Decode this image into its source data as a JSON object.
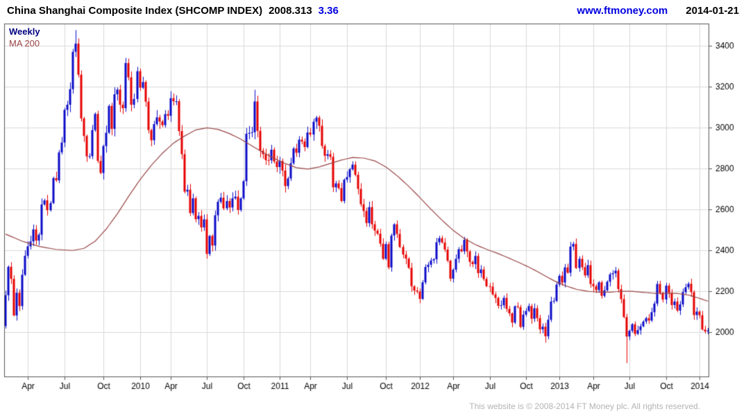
{
  "header": {
    "title": "China Shanghai Composite Index (SHCOMP INDEX)",
    "last_price": "2008.313",
    "change": "3.36",
    "site_link": "www.ftmoney.com",
    "date": "2014-01-21"
  },
  "legend": {
    "series_label": "Weekly",
    "ma_label": "MA 200"
  },
  "footer": {
    "copyright": "This website is © 2008-2014 FT Money plc. All rights reserved."
  },
  "colors": {
    "up": "#0a0ac8",
    "down": "#e60000",
    "ma": "#994444",
    "grid": "#d9d9d9",
    "border": "#555555",
    "axis_text": "#000000",
    "weekly_label": "#000080",
    "link_blue": "#0000e0",
    "change_blue": "#0000e0",
    "title_text": "#000000",
    "footer_text": "#b3b3b3"
  },
  "chart_data": {
    "type": "candlestick",
    "title": "China Shanghai Composite Index (SHCOMP INDEX)",
    "interval": "Weekly",
    "overlay": "MA 200",
    "start_date": "2009-02",
    "end_date": "2014-01-21",
    "last_close": 2008.313,
    "change": 3.36,
    "grid": true,
    "ylim": [
      1780,
      3510
    ],
    "y_ticks": [
      2000,
      2200,
      2400,
      2600,
      2800,
      3000,
      3200,
      3400
    ],
    "x_ticks": [
      {
        "week": 8,
        "label": "Apr"
      },
      {
        "week": 21,
        "label": "Jul"
      },
      {
        "week": 35,
        "label": "Oct"
      },
      {
        "week": 48,
        "label": "2010"
      },
      {
        "week": 59,
        "label": "Apr"
      },
      {
        "week": 72,
        "label": "Jul"
      },
      {
        "week": 85,
        "label": "Oct"
      },
      {
        "week": 98,
        "label": "2011"
      },
      {
        "week": 109,
        "label": "Apr"
      },
      {
        "week": 122,
        "label": "Jul"
      },
      {
        "week": 136,
        "label": "Oct"
      },
      {
        "week": 148,
        "label": "2012"
      },
      {
        "week": 160,
        "label": "Apr"
      },
      {
        "week": 173,
        "label": "Jul"
      },
      {
        "week": 186,
        "label": "Oct"
      },
      {
        "week": 198,
        "label": "2013"
      },
      {
        "week": 210,
        "label": "Apr"
      },
      {
        "week": 223,
        "label": "Jul"
      },
      {
        "week": 236,
        "label": "Oct"
      },
      {
        "week": 248,
        "label": "2014"
      }
    ],
    "first_open": 2030,
    "closes": [
      2181,
      2320,
      2261,
      2082,
      2193,
      2128,
      2281,
      2374,
      2420,
      2444,
      2503,
      2448,
      2477,
      2625,
      2645,
      2597,
      2632,
      2754,
      2743,
      2880,
      2928,
      3088,
      3113,
      3189,
      3372,
      3412,
      3260,
      3046,
      2960,
      2860,
      2861,
      2989,
      3068,
      2838,
      2779,
      2911,
      2976,
      3107,
      2995,
      3164,
      3187,
      3113,
      3096,
      3317,
      3247,
      3113,
      3141,
      3277,
      3196,
      3224,
      3128,
      2989,
      2939,
      3018,
      3051,
      3031,
      3013,
      3067,
      3059,
      3145,
      3130,
      3130,
      2984,
      2871,
      2688,
      2697,
      2583,
      2655,
      2553,
      2569,
      2513,
      2552,
      2383,
      2471,
      2424,
      2572,
      2638,
      2658,
      2606,
      2642,
      2610,
      2655,
      2663,
      2598,
      2655,
      2739,
      2971,
      2975,
      2978,
      3129,
      2985,
      2888,
      2871,
      2842,
      2841,
      2893,
      2835,
      2808,
      2838,
      2791,
      2715,
      2752,
      2827,
      2899,
      2878,
      2942,
      2933,
      2906,
      2977,
      2967,
      3030,
      3050,
      3010,
      2911,
      2863,
      2871,
      2858,
      2709,
      2728,
      2705,
      2642,
      2746,
      2759,
      2797,
      2820,
      2770,
      2701,
      2626,
      2593,
      2534,
      2612,
      2528,
      2497,
      2482,
      2433,
      2359,
      2431,
      2317,
      2473,
      2528,
      2481,
      2417,
      2380,
      2360,
      2315,
      2225,
      2204,
      2199,
      2163,
      2244,
      2319,
      2330,
      2351,
      2357,
      2440,
      2460,
      2439,
      2404,
      2350,
      2262,
      2306,
      2359,
      2406,
      2396,
      2452,
      2395,
      2344,
      2333,
      2373,
      2289,
      2307,
      2260,
      2225,
      2223,
      2185,
      2168,
      2129,
      2132,
      2168,
      2114,
      2092,
      2047,
      2127,
      2123,
      2026,
      2086,
      2104,
      2128,
      2066,
      2117,
      2069,
      2014,
      2027,
      1980,
      2061,
      2150,
      2153,
      2233,
      2276,
      2243,
      2317,
      2291,
      2419,
      2432,
      2314,
      2359,
      2318,
      2278,
      2328,
      2236,
      2225,
      2206,
      2244,
      2178,
      2205,
      2247,
      2283,
      2288,
      2301,
      2211,
      2162,
      2074,
      1979,
      2007,
      2039,
      1992,
      2010,
      2029,
      2052,
      2069,
      2057,
      2098,
      2140,
      2236,
      2192,
      2160,
      2228,
      2193,
      2133,
      2150,
      2106,
      2136,
      2196,
      2220,
      2237,
      2196,
      2084,
      2101,
      2083,
      2013,
      2004,
      2008.31
    ],
    "wick_overrides": {
      "25": {
        "high": 3478
      },
      "89": {
        "high": 3186
      },
      "137": {
        "low": 2307
      },
      "193": {
        "low": 1949
      },
      "222": {
        "low": 1849
      }
    },
    "ma200_anchors": [
      [
        0,
        2480
      ],
      [
        6,
        2445
      ],
      [
        12,
        2420
      ],
      [
        18,
        2405
      ],
      [
        24,
        2400
      ],
      [
        28,
        2410
      ],
      [
        32,
        2445
      ],
      [
        36,
        2505
      ],
      [
        40,
        2580
      ],
      [
        44,
        2665
      ],
      [
        48,
        2745
      ],
      [
        52,
        2815
      ],
      [
        56,
        2875
      ],
      [
        60,
        2925
      ],
      [
        64,
        2960
      ],
      [
        68,
        2990
      ],
      [
        72,
        3000
      ],
      [
        76,
        2992
      ],
      [
        80,
        2972
      ],
      [
        84,
        2945
      ],
      [
        88,
        2912
      ],
      [
        92,
        2880
      ],
      [
        96,
        2850
      ],
      [
        100,
        2825
      ],
      [
        104,
        2805
      ],
      [
        108,
        2798
      ],
      [
        112,
        2808
      ],
      [
        116,
        2825
      ],
      [
        120,
        2842
      ],
      [
        124,
        2855
      ],
      [
        128,
        2852
      ],
      [
        132,
        2838
      ],
      [
        136,
        2808
      ],
      [
        140,
        2765
      ],
      [
        144,
        2715
      ],
      [
        148,
        2660
      ],
      [
        152,
        2602
      ],
      [
        156,
        2548
      ],
      [
        160,
        2498
      ],
      [
        164,
        2458
      ],
      [
        168,
        2428
      ],
      [
        172,
        2405
      ],
      [
        176,
        2385
      ],
      [
        180,
        2362
      ],
      [
        184,
        2338
      ],
      [
        188,
        2312
      ],
      [
        192,
        2282
      ],
      [
        196,
        2252
      ],
      [
        200,
        2228
      ],
      [
        204,
        2210
      ],
      [
        208,
        2200
      ],
      [
        212,
        2196
      ],
      [
        216,
        2196
      ],
      [
        220,
        2200
      ],
      [
        224,
        2200
      ],
      [
        228,
        2195
      ],
      [
        232,
        2190
      ],
      [
        236,
        2190
      ],
      [
        240,
        2190
      ],
      [
        244,
        2182
      ],
      [
        248,
        2166
      ],
      [
        251,
        2152
      ]
    ]
  }
}
